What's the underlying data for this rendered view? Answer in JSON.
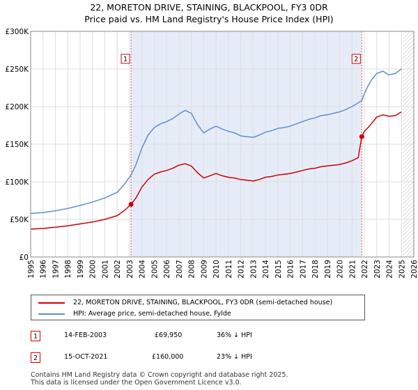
{
  "title": "22, MORETON DRIVE, STAINING, BLACKPOOL, FY3 0DR",
  "subtitle": "Price paid vs. HM Land Registry's House Price Index (HPI)",
  "chart_data": {
    "type": "line",
    "title": "22, MORETON DRIVE, STAINING, BLACKPOOL, FY3 0DR",
    "subtitle": "Price paid vs. HM Land Registry's House Price Index (HPI)",
    "xlabel": "",
    "ylabel": "",
    "xlim": [
      1995,
      2026
    ],
    "ylim": [
      0,
      300000
    ],
    "x_ticks": [
      "1995",
      "1996",
      "1997",
      "1998",
      "1999",
      "2000",
      "2001",
      "2002",
      "2003",
      "2004",
      "2005",
      "2006",
      "2007",
      "2008",
      "2009",
      "2010",
      "2011",
      "2012",
      "2013",
      "2014",
      "2015",
      "2016",
      "2017",
      "2018",
      "2019",
      "2020",
      "2021",
      "2022",
      "2023",
      "2024",
      "2025",
      "2026"
    ],
    "y_ticks": [
      {
        "value": 0,
        "label": "£0"
      },
      {
        "value": 50000,
        "label": "£50K"
      },
      {
        "value": 100000,
        "label": "£100K"
      },
      {
        "value": 150000,
        "label": "£150K"
      },
      {
        "value": 200000,
        "label": "£200K"
      },
      {
        "value": 250000,
        "label": "£250K"
      },
      {
        "value": 300000,
        "label": "£300K"
      }
    ],
    "grid": true,
    "highlight_span": [
      2003.12,
      2021.79
    ],
    "future_hatch_from": 2025.1,
    "series": [
      {
        "name": "22, MORETON DRIVE, STAINING, BLACKPOOL, FY3 0DR (semi-detached house)",
        "color": "#cc0000",
        "x": [
          1995.0,
          1996.0,
          1997.0,
          1998.0,
          1999.0,
          2000.0,
          2001.0,
          2002.0,
          2002.6,
          2003.12,
          2003.5,
          2004.0,
          2004.5,
          2005.0,
          2005.5,
          2006.0,
          2006.5,
          2007.0,
          2007.5,
          2008.0,
          2008.5,
          2009.0,
          2009.5,
          2010.0,
          2010.5,
          2011.0,
          2011.5,
          2012.0,
          2012.5,
          2013.0,
          2013.5,
          2014.0,
          2014.5,
          2015.0,
          2015.5,
          2016.0,
          2016.5,
          2017.0,
          2017.5,
          2018.0,
          2018.5,
          2019.0,
          2019.5,
          2020.0,
          2020.5,
          2021.0,
          2021.5,
          2021.79,
          2022.0,
          2022.3,
          2022.6,
          2023.0,
          2023.5,
          2024.0,
          2024.5,
          2025.0
        ],
        "y": [
          37000,
          38000,
          39500,
          41500,
          44000,
          46500,
          50000,
          55000,
          62000,
          69950,
          78000,
          93000,
          103000,
          110000,
          113000,
          115000,
          118000,
          122000,
          124000,
          121000,
          112000,
          105000,
          108000,
          111000,
          108000,
          106000,
          105000,
          103000,
          102000,
          101000,
          103000,
          106000,
          107000,
          109000,
          110000,
          111000,
          113000,
          115000,
          117000,
          118000,
          120000,
          121000,
          122000,
          123000,
          125000,
          128000,
          132000,
          160000,
          167000,
          172000,
          178000,
          186000,
          189000,
          187000,
          188000,
          193000
        ]
      },
      {
        "name": "HPI: Average price, semi-detached house, Fylde",
        "color": "#5b8fd0",
        "x": [
          1995.0,
          1996.0,
          1997.0,
          1998.0,
          1999.0,
          2000.0,
          2001.0,
          2002.0,
          2002.6,
          2003.12,
          2003.5,
          2004.0,
          2004.5,
          2005.0,
          2005.5,
          2006.0,
          2006.5,
          2007.0,
          2007.5,
          2008.0,
          2008.5,
          2009.0,
          2009.5,
          2010.0,
          2010.5,
          2011.0,
          2011.5,
          2012.0,
          2012.5,
          2013.0,
          2013.5,
          2014.0,
          2014.5,
          2015.0,
          2015.5,
          2016.0,
          2016.5,
          2017.0,
          2017.5,
          2018.0,
          2018.5,
          2019.0,
          2019.5,
          2020.0,
          2020.5,
          2021.0,
          2021.5,
          2021.79,
          2022.0,
          2022.3,
          2022.6,
          2023.0,
          2023.5,
          2024.0,
          2024.5,
          2025.0
        ],
        "y": [
          58000,
          59000,
          61500,
          64500,
          68500,
          73000,
          78500,
          86000,
          97000,
          109000,
          122000,
          145000,
          162000,
          172000,
          177000,
          180000,
          184000,
          190000,
          195000,
          191000,
          176000,
          165000,
          170000,
          174000,
          170000,
          167000,
          165000,
          161000,
          160000,
          159000,
          162000,
          166000,
          168000,
          171000,
          172000,
          174000,
          177000,
          180000,
          183000,
          185000,
          188000,
          189000,
          191000,
          193000,
          196000,
          200000,
          205000,
          208000,
          217000,
          228000,
          236000,
          244000,
          247000,
          242000,
          244000,
          250000
        ]
      }
    ],
    "sales": [
      {
        "num": "1",
        "year": 2003.12,
        "price": 69950
      },
      {
        "num": "2",
        "year": 2021.79,
        "price": 160000
      }
    ]
  },
  "legend": {
    "property": "22, MORETON DRIVE, STAINING, BLACKPOOL, FY3 0DR (semi-detached house)",
    "hpi": "HPI: Average price, semi-detached house, Fylde"
  },
  "transactions": [
    {
      "num": "1",
      "date": "14-FEB-2003",
      "price": "£69,950",
      "hpi": "36% ↓ HPI"
    },
    {
      "num": "2",
      "date": "15-OCT-2021",
      "price": "£160,000",
      "hpi": "23% ↓ HPI"
    }
  ],
  "footer": {
    "line1": "Contains HM Land Registry data © Crown copyright and database right 2025.",
    "line2": "This data is licensed under the Open Government Licence v3.0."
  }
}
